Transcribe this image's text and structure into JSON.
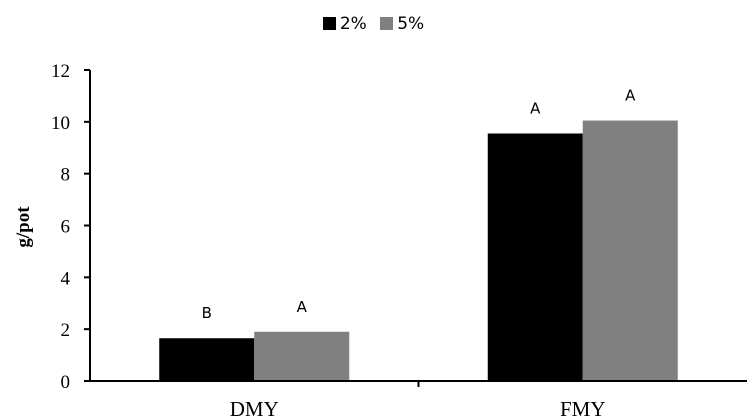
{
  "chart_data": {
    "type": "bar",
    "title": "",
    "xlabel": "",
    "ylabel": "g/pot",
    "categories": [
      "DMY",
      "FMY"
    ],
    "series": [
      {
        "name": "2%",
        "color": "#000000",
        "values": [
          1.65,
          9.55
        ],
        "labels": [
          "B",
          "A"
        ]
      },
      {
        "name": "5%",
        "color": "#808080",
        "values": [
          1.9,
          10.05
        ],
        "labels": [
          "A",
          "A"
        ]
      }
    ],
    "ylim": [
      0,
      12
    ],
    "yticks": [
      0,
      2,
      4,
      6,
      8,
      10,
      12
    ],
    "grid": false,
    "legend_position": "top-center"
  }
}
